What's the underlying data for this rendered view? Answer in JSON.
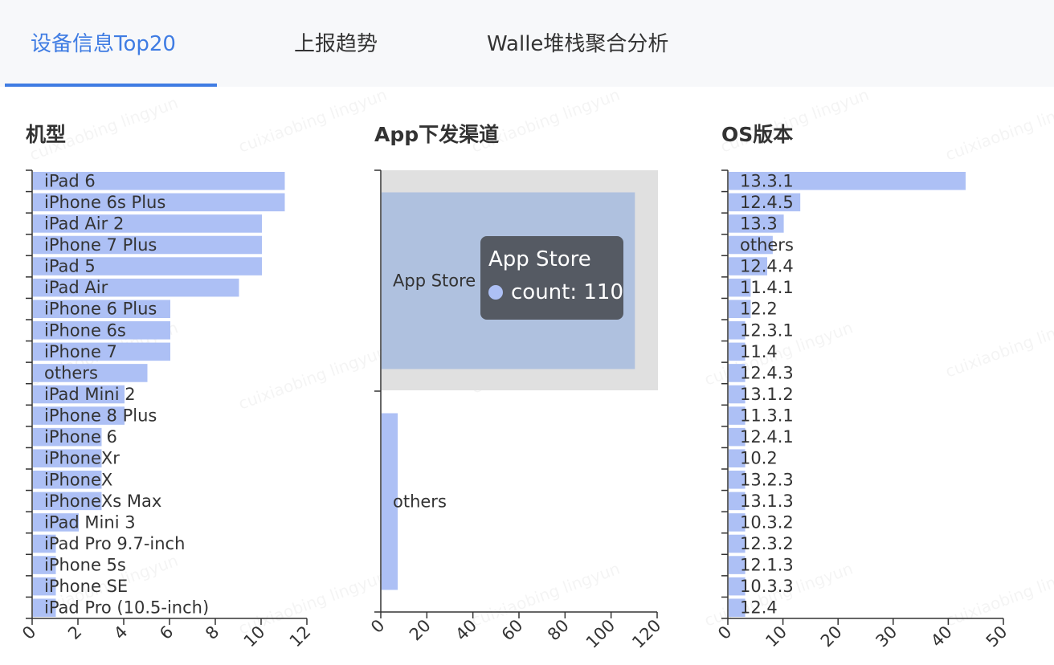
{
  "tabs": [
    {
      "label": "设备信息Top20",
      "active": true
    },
    {
      "label": "上报趋势",
      "active": false
    },
    {
      "label": "Walle堆栈聚合分析",
      "active": false
    }
  ],
  "panels": {
    "model_title": "机型",
    "channel_title": "App下发渠道",
    "os_title": "OS版本"
  },
  "watermark": "cuixiaobing lingyun",
  "tooltip": {
    "title": "App Store",
    "label": "count",
    "value": "110"
  },
  "colors": {
    "bar": "#adc0f5",
    "accent": "#3f7ce3",
    "treemap_bg": "#e0e0e0",
    "treemap_highlight": "#afc1df"
  },
  "chart_data": [
    {
      "type": "bar",
      "orientation": "horizontal",
      "title": "机型",
      "categories": [
        "iPad 6",
        "iPhone 6s Plus",
        "iPad Air 2",
        "iPhone 7 Plus",
        "iPad 5",
        "iPad Air",
        "iPhone 6 Plus",
        "iPhone 6s",
        "iPhone 7",
        "others",
        "iPad Mini 2",
        "iPhone 8 Plus",
        "iPhone 6",
        "iPhoneXr",
        "iPhoneX",
        "iPhoneXs Max",
        "iPad Mini 3",
        "iPad Pro 9.7-inch",
        "iPhone 5s",
        "iPhone SE",
        "iPad Pro (10.5-inch)"
      ],
      "values": [
        11,
        11,
        10,
        10,
        10,
        9,
        6,
        6,
        6,
        5,
        4,
        4,
        3,
        3,
        3,
        3,
        2,
        1,
        1,
        1,
        1
      ],
      "xlim": [
        0,
        12
      ],
      "xticks": [
        0,
        2,
        4,
        6,
        8,
        10,
        12
      ]
    },
    {
      "type": "bar",
      "orientation": "horizontal",
      "title": "App下发渠道",
      "categories": [
        "App Store",
        "others"
      ],
      "values": [
        110,
        7
      ],
      "xlim": [
        0,
        120
      ],
      "xticks": [
        0,
        20,
        40,
        60,
        80,
        100,
        120
      ],
      "highlighted": "App Store"
    },
    {
      "type": "bar",
      "orientation": "horizontal",
      "title": "OS版本",
      "categories": [
        "13.3.1",
        "12.4.5",
        "13.3",
        "others",
        "12.4.4",
        "11.4.1",
        "12.2",
        "12.3.1",
        "11.4",
        "12.4.3",
        "13.1.2",
        "11.3.1",
        "12.4.1",
        "10.2",
        "13.2.3",
        "13.1.3",
        "10.3.2",
        "12.3.2",
        "12.1.3",
        "10.3.3",
        "12.4"
      ],
      "values": [
        43,
        13,
        10,
        8,
        7,
        4,
        4,
        3,
        3,
        3,
        3,
        3,
        3,
        3,
        3,
        3,
        3,
        3,
        3,
        3,
        3
      ],
      "xlim": [
        0,
        50
      ],
      "xticks": [
        0,
        10,
        20,
        30,
        40,
        50
      ]
    }
  ]
}
